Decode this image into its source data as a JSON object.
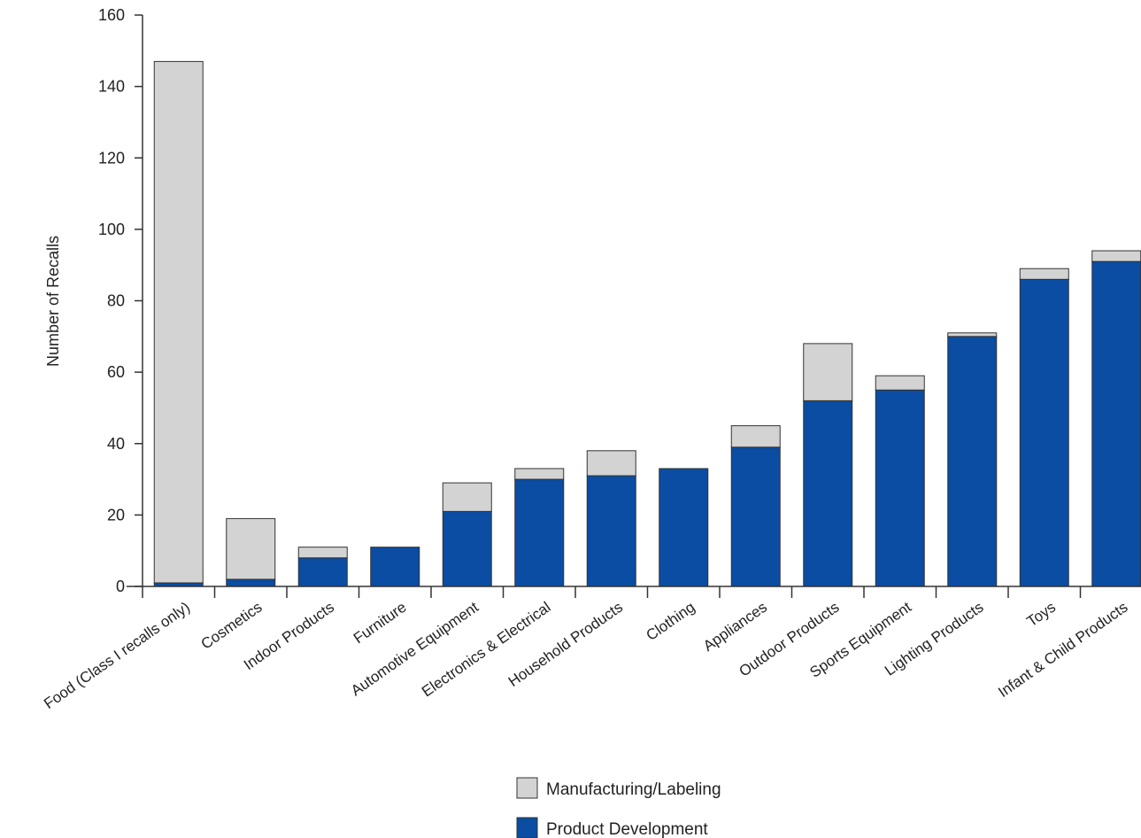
{
  "chart_data": {
    "type": "bar",
    "stacked": true,
    "title": "",
    "xlabel": "",
    "ylabel": "Number of Recalls",
    "ylim": [
      0,
      160
    ],
    "yticks": [
      0,
      20,
      40,
      60,
      80,
      100,
      120,
      140,
      160
    ],
    "grid": false,
    "legend_position": "bottom",
    "categories": [
      "Food (Class I recalls only)",
      "Cosmetics",
      "Indoor Products",
      "Furniture",
      "Automotive Equipment",
      "Electronics & Electrical",
      "Household Products",
      "Clothing",
      "Appliances",
      "Outdoor Products",
      "Sports Equipment",
      "Lighting Products",
      "Toys",
      "Infant & Child Products"
    ],
    "series": [
      {
        "name": "Product Development",
        "color": "#0a4da2",
        "values": [
          1,
          2,
          8,
          11,
          21,
          30,
          31,
          33,
          39,
          52,
          55,
          70,
          86,
          91
        ]
      },
      {
        "name": "Manufacturing/Labeling",
        "color": "#d3d3d3",
        "values": [
          146,
          17,
          3,
          0,
          8,
          3,
          7,
          0,
          6,
          16,
          4,
          1,
          3,
          3
        ]
      }
    ],
    "legend": [
      {
        "name": "Manufacturing/Labeling",
        "color": "#d3d3d3"
      },
      {
        "name": "Product Development",
        "color": "#0a4da2"
      }
    ]
  }
}
